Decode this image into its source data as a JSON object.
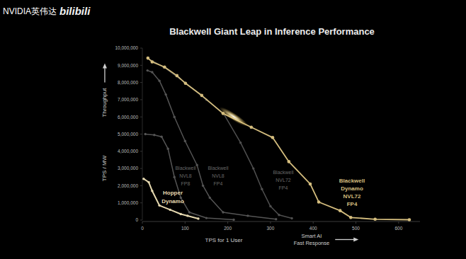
{
  "watermark": {
    "brand": "NVIDIA英伟达",
    "site": "bilibili"
  },
  "chart_data": {
    "type": "line",
    "title": "Blackwell Giant Leap in Inference Performance",
    "y_label": "TPS / MW",
    "y_annotation": "Throughput",
    "x_label": "TPS for 1 User",
    "x_annotation": "Smart AI\nFast Response",
    "xlim": [
      0,
      650
    ],
    "xticks": [
      0,
      100,
      200,
      300,
      400,
      500,
      600
    ],
    "ylim": [
      0,
      10000000
    ],
    "yticks": [
      0,
      {
        "value": 1000000,
        "label": "1,000,000"
      },
      {
        "value": 2000000,
        "label": "2,000,000"
      },
      {
        "value": 3000000,
        "label": "3,000,000"
      },
      {
        "value": 4000000,
        "label": "4,000,000"
      },
      {
        "value": 5000000,
        "label": "5,000,000"
      },
      {
        "value": 6000000,
        "label": "6,000,000"
      },
      {
        "value": 7000000,
        "label": "7,000,000"
      },
      {
        "value": 8000000,
        "label": "8,000,000"
      },
      {
        "value": 9000000,
        "label": "9,000,000"
      },
      {
        "value": 10000000,
        "label": "10,000,000"
      }
    ],
    "grid": false,
    "marker": "circle",
    "series": [
      {
        "name": "Hopper Dynamo",
        "color": "#e6d9b0",
        "x": [
          3,
          15,
          23,
          40,
          65,
          90,
          106,
          131
        ],
        "values": [
          2400000,
          2200000,
          1700000,
          850000,
          600000,
          350000,
          250000,
          80000
        ]
      },
      {
        "name": "Blackwell NVL8 FP8",
        "color": "#555555",
        "x": [
          7,
          28,
          45,
          60,
          75,
          90,
          110,
          150,
          214
        ],
        "values": [
          5000000,
          4950000,
          4850000,
          4150000,
          2500000,
          1300000,
          450000,
          120000,
          20000
        ]
      },
      {
        "name": "Blackwell NVL8 FP4",
        "color": "#555555",
        "x": [
          12,
          23,
          40,
          55,
          75,
          100,
          128,
          142,
          158,
          189,
          247,
          313
        ],
        "values": [
          8700000,
          8600000,
          8100000,
          7300000,
          6000000,
          4600000,
          3200000,
          2000000,
          1300000,
          450000,
          250000,
          50000
        ]
      },
      {
        "name": "Blackwell NVL72 FP4",
        "color": "#4f4f4f",
        "x": [
          13,
          50,
          100,
          150,
          190,
          230,
          260,
          280,
          300,
          320,
          350
        ],
        "values": [
          9400000,
          8900000,
          8000000,
          7000000,
          6200000,
          4500000,
          3000000,
          1800000,
          800000,
          300000,
          100000
        ]
      },
      {
        "name": "Blackwell Dynamo NVL72 FP4",
        "color": "#d4bd7e",
        "x": [
          13,
          23,
          52,
          81,
          101,
          139,
          189,
          255,
          305,
          343,
          393,
          413,
          463,
          488,
          545,
          625
        ],
        "values": [
          9420000,
          9200000,
          8900000,
          8400000,
          7950000,
          7250000,
          6200000,
          5400000,
          4800000,
          3400000,
          2100000,
          1050000,
          550000,
          150000,
          50000,
          20000
        ]
      }
    ]
  }
}
